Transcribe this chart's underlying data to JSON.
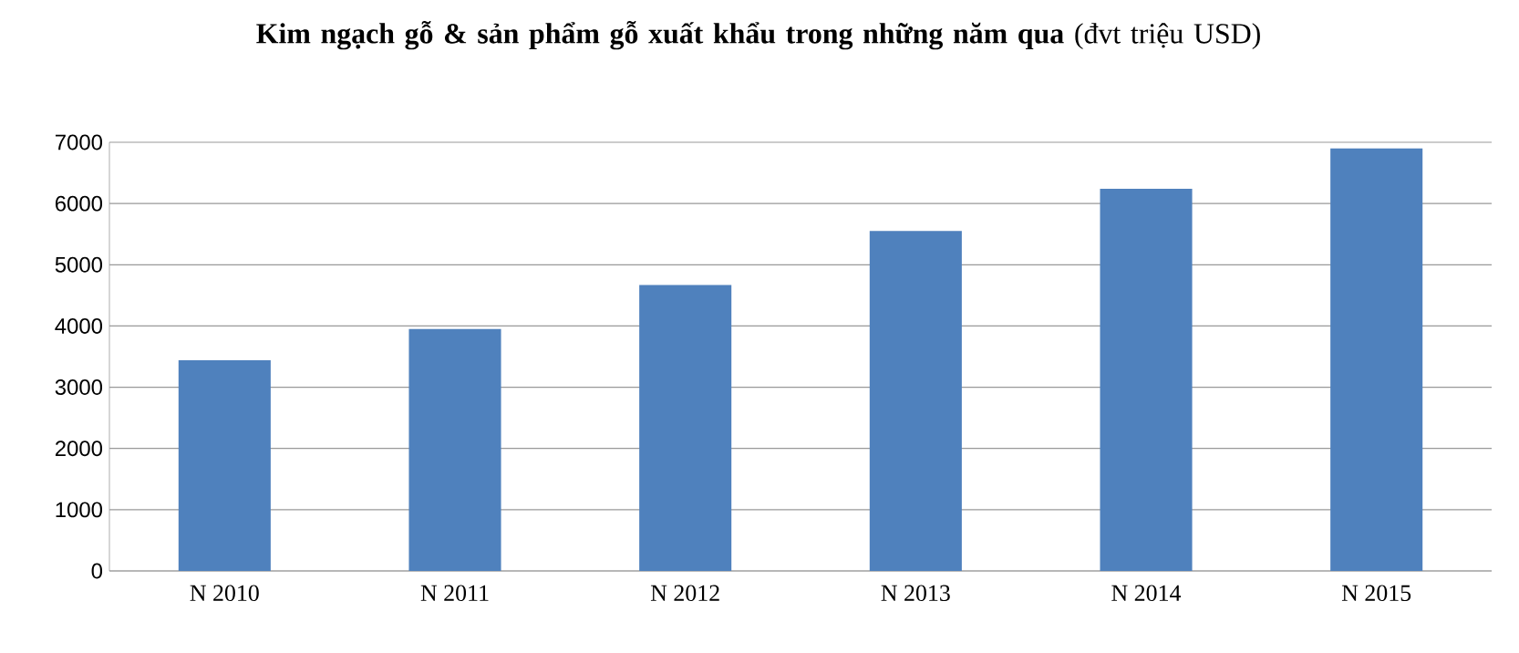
{
  "chart_data": {
    "type": "bar",
    "title": "**Kim ngạch gỗ & sản phẩm gỗ xuất khẩu trong những năm qua** (đvt triệu USD)",
    "categories": [
      "N 2010",
      "N 2011",
      "N 2012",
      "N 2013",
      "N 2014",
      "N 2015"
    ],
    "values": [
      3440,
      3950,
      4670,
      5550,
      6240,
      6900
    ],
    "color": "#4f81bd",
    "ylim": [
      0,
      7000
    ],
    "yticks": [
      0,
      1000,
      2000,
      3000,
      4000,
      5000,
      6000,
      7000
    ],
    "grid": "y"
  }
}
